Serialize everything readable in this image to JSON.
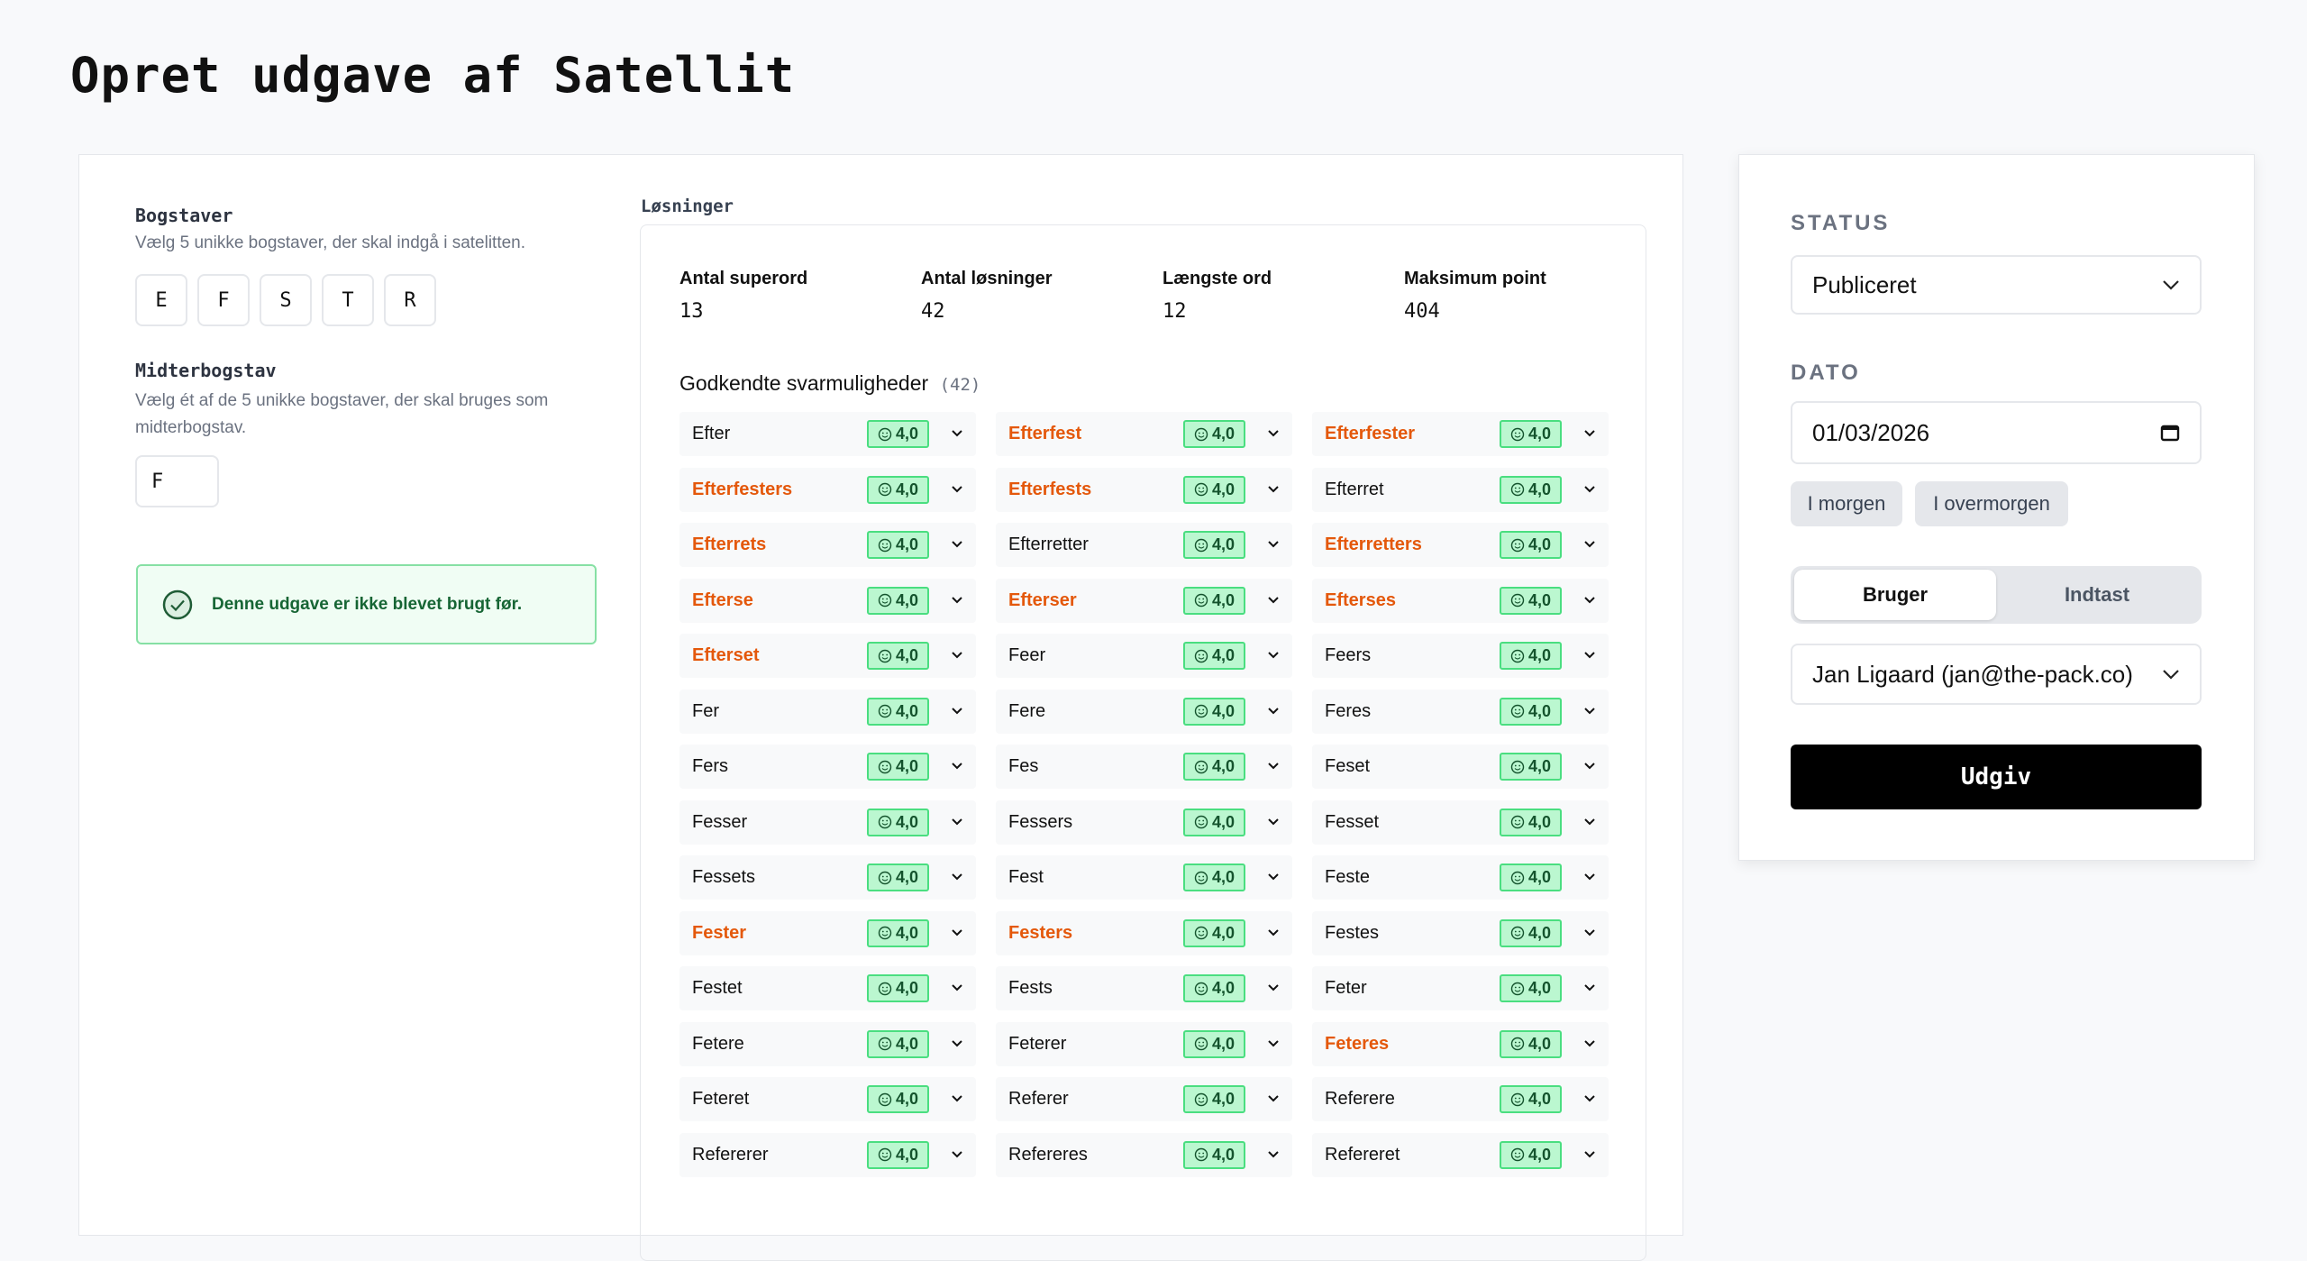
{
  "page": {
    "title": "Opret udgave af Satellit"
  },
  "letters": {
    "label": "Bogstaver",
    "description": "Vælg 5 unikke bogstaver, der skal indgå i satelitten.",
    "values": [
      "E",
      "F",
      "S",
      "T",
      "R"
    ]
  },
  "center": {
    "label": "Midterbogstav",
    "description_line1": "Vælg ét af de 5 unikke bogstaver, der skal bruges som",
    "description_line2": "midterbogstav.",
    "value": "F"
  },
  "success": {
    "icon": "check-circle-icon",
    "text": "Denne udgave er ikke blevet brugt før."
  },
  "solutions": {
    "label": "Løsninger",
    "stats": [
      {
        "label": "Antal superord",
        "value": "13"
      },
      {
        "label": "Antal løsninger",
        "value": "42"
      },
      {
        "label": "Længste ord",
        "value": "12"
      },
      {
        "label": "Maksimum point",
        "value": "404"
      }
    ],
    "heading": "Godkendte svarmuligheder",
    "count": "(42)",
    "colors": {
      "superword": "#e4580b",
      "badge_bg": "#bbf7d0",
      "badge_border": "#4ade80"
    },
    "words": [
      {
        "w": "Efter",
        "s": false,
        "score": "4,0"
      },
      {
        "w": "Efterfest",
        "s": true,
        "score": "4,0"
      },
      {
        "w": "Efterfester",
        "s": true,
        "score": "4,0"
      },
      {
        "w": "Efterfesters",
        "s": true,
        "score": "4,0"
      },
      {
        "w": "Efterfests",
        "s": true,
        "score": "4,0"
      },
      {
        "w": "Efterret",
        "s": false,
        "score": "4,0"
      },
      {
        "w": "Efterrets",
        "s": true,
        "score": "4,0"
      },
      {
        "w": "Efterretter",
        "s": false,
        "score": "4,0"
      },
      {
        "w": "Efterretters",
        "s": true,
        "score": "4,0"
      },
      {
        "w": "Efterse",
        "s": true,
        "score": "4,0"
      },
      {
        "w": "Efterser",
        "s": true,
        "score": "4,0"
      },
      {
        "w": "Efterses",
        "s": true,
        "score": "4,0"
      },
      {
        "w": "Efterset",
        "s": true,
        "score": "4,0"
      },
      {
        "w": "Feer",
        "s": false,
        "score": "4,0"
      },
      {
        "w": "Feers",
        "s": false,
        "score": "4,0"
      },
      {
        "w": "Fer",
        "s": false,
        "score": "4,0"
      },
      {
        "w": "Fere",
        "s": false,
        "score": "4,0"
      },
      {
        "w": "Feres",
        "s": false,
        "score": "4,0"
      },
      {
        "w": "Fers",
        "s": false,
        "score": "4,0"
      },
      {
        "w": "Fes",
        "s": false,
        "score": "4,0"
      },
      {
        "w": "Feset",
        "s": false,
        "score": "4,0"
      },
      {
        "w": "Fesser",
        "s": false,
        "score": "4,0"
      },
      {
        "w": "Fessers",
        "s": false,
        "score": "4,0"
      },
      {
        "w": "Fesset",
        "s": false,
        "score": "4,0"
      },
      {
        "w": "Fessets",
        "s": false,
        "score": "4,0"
      },
      {
        "w": "Fest",
        "s": false,
        "score": "4,0"
      },
      {
        "w": "Feste",
        "s": false,
        "score": "4,0"
      },
      {
        "w": "Fester",
        "s": true,
        "score": "4,0"
      },
      {
        "w": "Festers",
        "s": true,
        "score": "4,0"
      },
      {
        "w": "Festes",
        "s": false,
        "score": "4,0"
      },
      {
        "w": "Festet",
        "s": false,
        "score": "4,0"
      },
      {
        "w": "Fests",
        "s": false,
        "score": "4,0"
      },
      {
        "w": "Feter",
        "s": false,
        "score": "4,0"
      },
      {
        "w": "Fetere",
        "s": false,
        "score": "4,0"
      },
      {
        "w": "Feterer",
        "s": false,
        "score": "4,0"
      },
      {
        "w": "Feteres",
        "s": true,
        "score": "4,0"
      },
      {
        "w": "Feteret",
        "s": false,
        "score": "4,0"
      },
      {
        "w": "Referer",
        "s": false,
        "score": "4,0"
      },
      {
        "w": "Referere",
        "s": false,
        "score": "4,0"
      },
      {
        "w": "Refererer",
        "s": false,
        "score": "4,0"
      },
      {
        "w": "Refereres",
        "s": false,
        "score": "4,0"
      },
      {
        "w": "Refereret",
        "s": false,
        "score": "4,0"
      }
    ]
  },
  "side": {
    "status_label": "STATUS",
    "status_value": "Publiceret",
    "date_label": "DATO",
    "date_value": "01/03/2026",
    "quick_tomorrow": "I morgen",
    "quick_day_after": "I overmorgen",
    "seg_user": "Bruger",
    "seg_manual": "Indtast",
    "user_value": "Jan Ligaard (jan@the-pack.co)",
    "publish": "Udgiv"
  }
}
